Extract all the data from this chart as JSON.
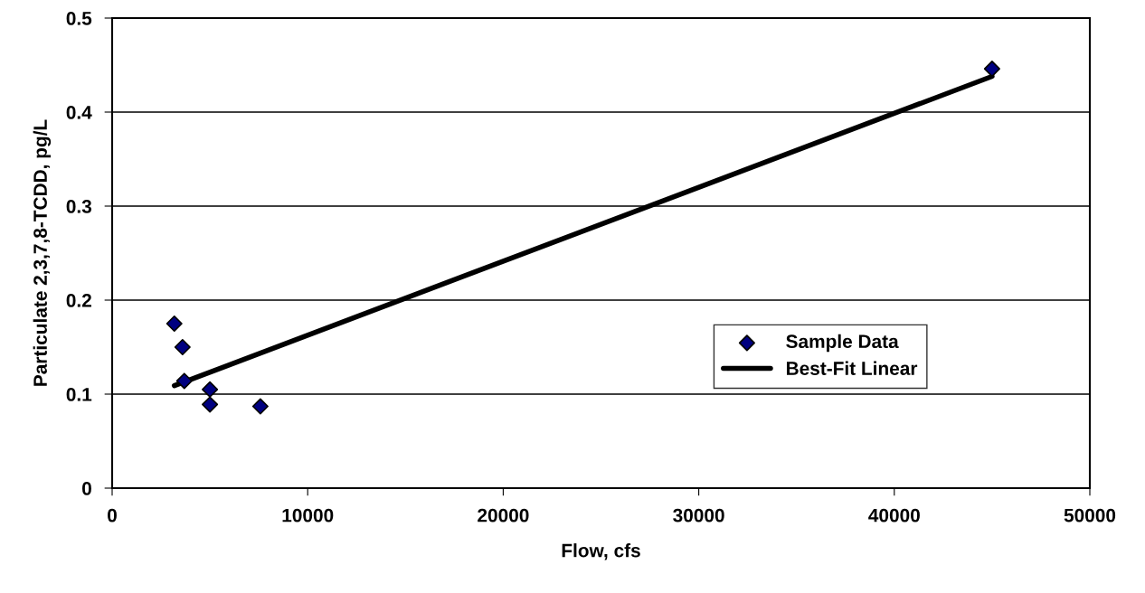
{
  "chart_data": {
    "type": "scatter",
    "xlabel": "Flow, cfs",
    "ylabel": "Particulate 2,3,7,8-TCDD, pg/L",
    "series": [
      {
        "name": "Sample Data",
        "color": "#000080",
        "marker": "diamond",
        "x": [
          3180,
          3600,
          3690,
          5000,
          5000,
          7580,
          45000
        ],
        "values": [
          0.175,
          0.15,
          0.114,
          0.105,
          0.089,
          0.087,
          0.446
        ]
      },
      {
        "name": "Best-Fit Linear",
        "type": "line",
        "color": "#000000",
        "marker": "none",
        "line_style": "solid",
        "x": [
          3180,
          45000
        ],
        "values": [
          0.109,
          0.438
        ]
      }
    ],
    "xlim": [
      0,
      50000
    ],
    "xticks": [
      0,
      10000,
      20000,
      30000,
      40000,
      50000
    ],
    "ylim": [
      0,
      0.5
    ],
    "yticks": [
      0,
      0.1,
      0.2,
      0.3,
      0.4,
      0.5
    ],
    "grid": "y",
    "legend": "center right"
  }
}
